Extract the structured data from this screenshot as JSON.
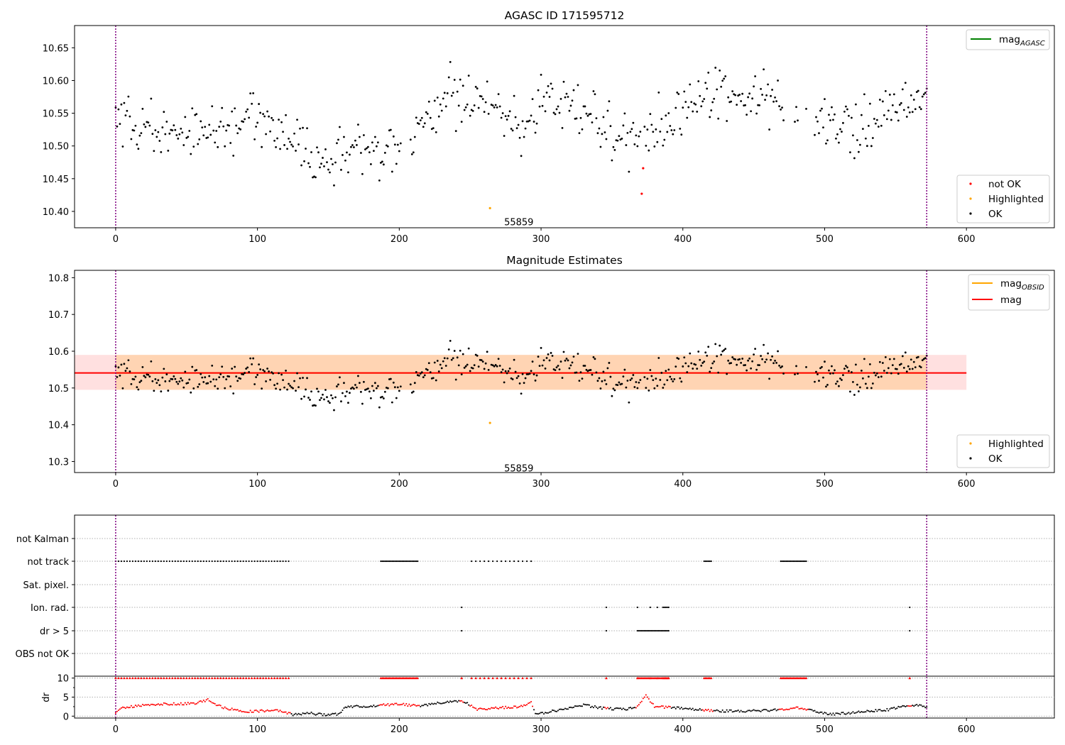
{
  "chart_data": [
    {
      "type": "scatter",
      "title": "AGASC ID 171595712",
      "xlim": [
        -29,
        662
      ],
      "ylim": [
        10.375,
        10.684
      ],
      "xticks": [
        0,
        100,
        200,
        300,
        400,
        500,
        600
      ],
      "yticks": [
        "10.40",
        "10.45",
        "10.50",
        "10.55",
        "10.60",
        "10.65"
      ],
      "vlines": [
        0,
        572
      ],
      "annotation": {
        "text": "55859",
        "x": 285,
        "y": 10.384
      },
      "legends": [
        {
          "loc": "upper right",
          "entries": [
            {
              "label": "mag",
              "sub": "AGASC",
              "kind": "line",
              "color": "#008000"
            }
          ]
        },
        {
          "loc": "lower right",
          "entries": [
            {
              "label": "not OK",
              "kind": "dot",
              "color": "#ff0000"
            },
            {
              "label": "Highlighted",
              "kind": "dot",
              "color": "#ffa500"
            },
            {
              "label": "OK",
              "kind": "dot",
              "color": "#000000"
            }
          ]
        }
      ],
      "highlighted": [
        [
          264,
          10.405
        ]
      ],
      "not_ok": [
        [
          371,
          10.427
        ],
        [
          372,
          10.466
        ]
      ]
    },
    {
      "type": "scatter",
      "title": "Magnitude Estimates",
      "xlim": [
        -29,
        662
      ],
      "ylim": [
        10.27,
        10.82
      ],
      "xticks": [
        0,
        100,
        200,
        300,
        400,
        500,
        600
      ],
      "yticks": [
        "10.3",
        "10.4",
        "10.5",
        "10.6",
        "10.7",
        "10.8"
      ],
      "vlines": [
        0,
        572
      ],
      "annotation": {
        "text": "55859",
        "x": 285,
        "y": 10.283
      },
      "mag_obsid": {
        "mean": 10.541,
        "band": [
          10.495,
          10.59
        ],
        "x": [
          0,
          572
        ]
      },
      "mag": {
        "mean": 10.541,
        "band": [
          10.495,
          10.59
        ],
        "x": [
          -29,
          600
        ]
      },
      "legends": [
        {
          "loc": "upper right",
          "entries": [
            {
              "label": "mag",
              "sub": "OBSID",
              "kind": "line",
              "color": "#ffa500"
            },
            {
              "label": "mag",
              "kind": "line",
              "color": "#ff0000"
            }
          ]
        },
        {
          "loc": "lower right",
          "entries": [
            {
              "label": "Highlighted",
              "kind": "dot",
              "color": "#ffa500"
            },
            {
              "label": "OK",
              "kind": "dot",
              "color": "#000000"
            }
          ]
        }
      ],
      "highlighted": [
        [
          264,
          10.405
        ]
      ]
    },
    {
      "type": "scatter",
      "title": "",
      "xlim": [
        -29,
        662
      ],
      "xticks": [
        0,
        100,
        200,
        300,
        400,
        500,
        600
      ],
      "vlines": [
        0,
        572
      ],
      "flag_labels": [
        "not Kalman",
        "not track",
        "Sat. pixel.",
        "Ion. rad.",
        "dr > 5",
        "OBS not OK"
      ],
      "flags": {
        "not track": [
          [
            0,
            122,
            2
          ],
          [
            187,
            213,
            1
          ],
          [
            251,
            293,
            3
          ],
          [
            415,
            420,
            1
          ],
          [
            469,
            487,
            1
          ]
        ],
        "Ion. rad.": [
          [
            244,
            244,
            1
          ],
          [
            346,
            346,
            1
          ],
          [
            368,
            368,
            1
          ],
          [
            377,
            377,
            1
          ],
          [
            382,
            382,
            1
          ],
          [
            386,
            390,
            1
          ],
          [
            560,
            560,
            1
          ]
        ],
        "dr > 5": [
          [
            244,
            244,
            1
          ],
          [
            346,
            346,
            1
          ],
          [
            368,
            390,
            1
          ],
          [
            560,
            560,
            1
          ]
        ]
      },
      "dr_panel": {
        "ylabel": "dr",
        "ylim": [
          -0.5,
          10.5
        ],
        "yticks": [
          "10",
          "5",
          "0"
        ],
        "cap_value": 10,
        "cap_label": "10"
      }
    }
  ]
}
